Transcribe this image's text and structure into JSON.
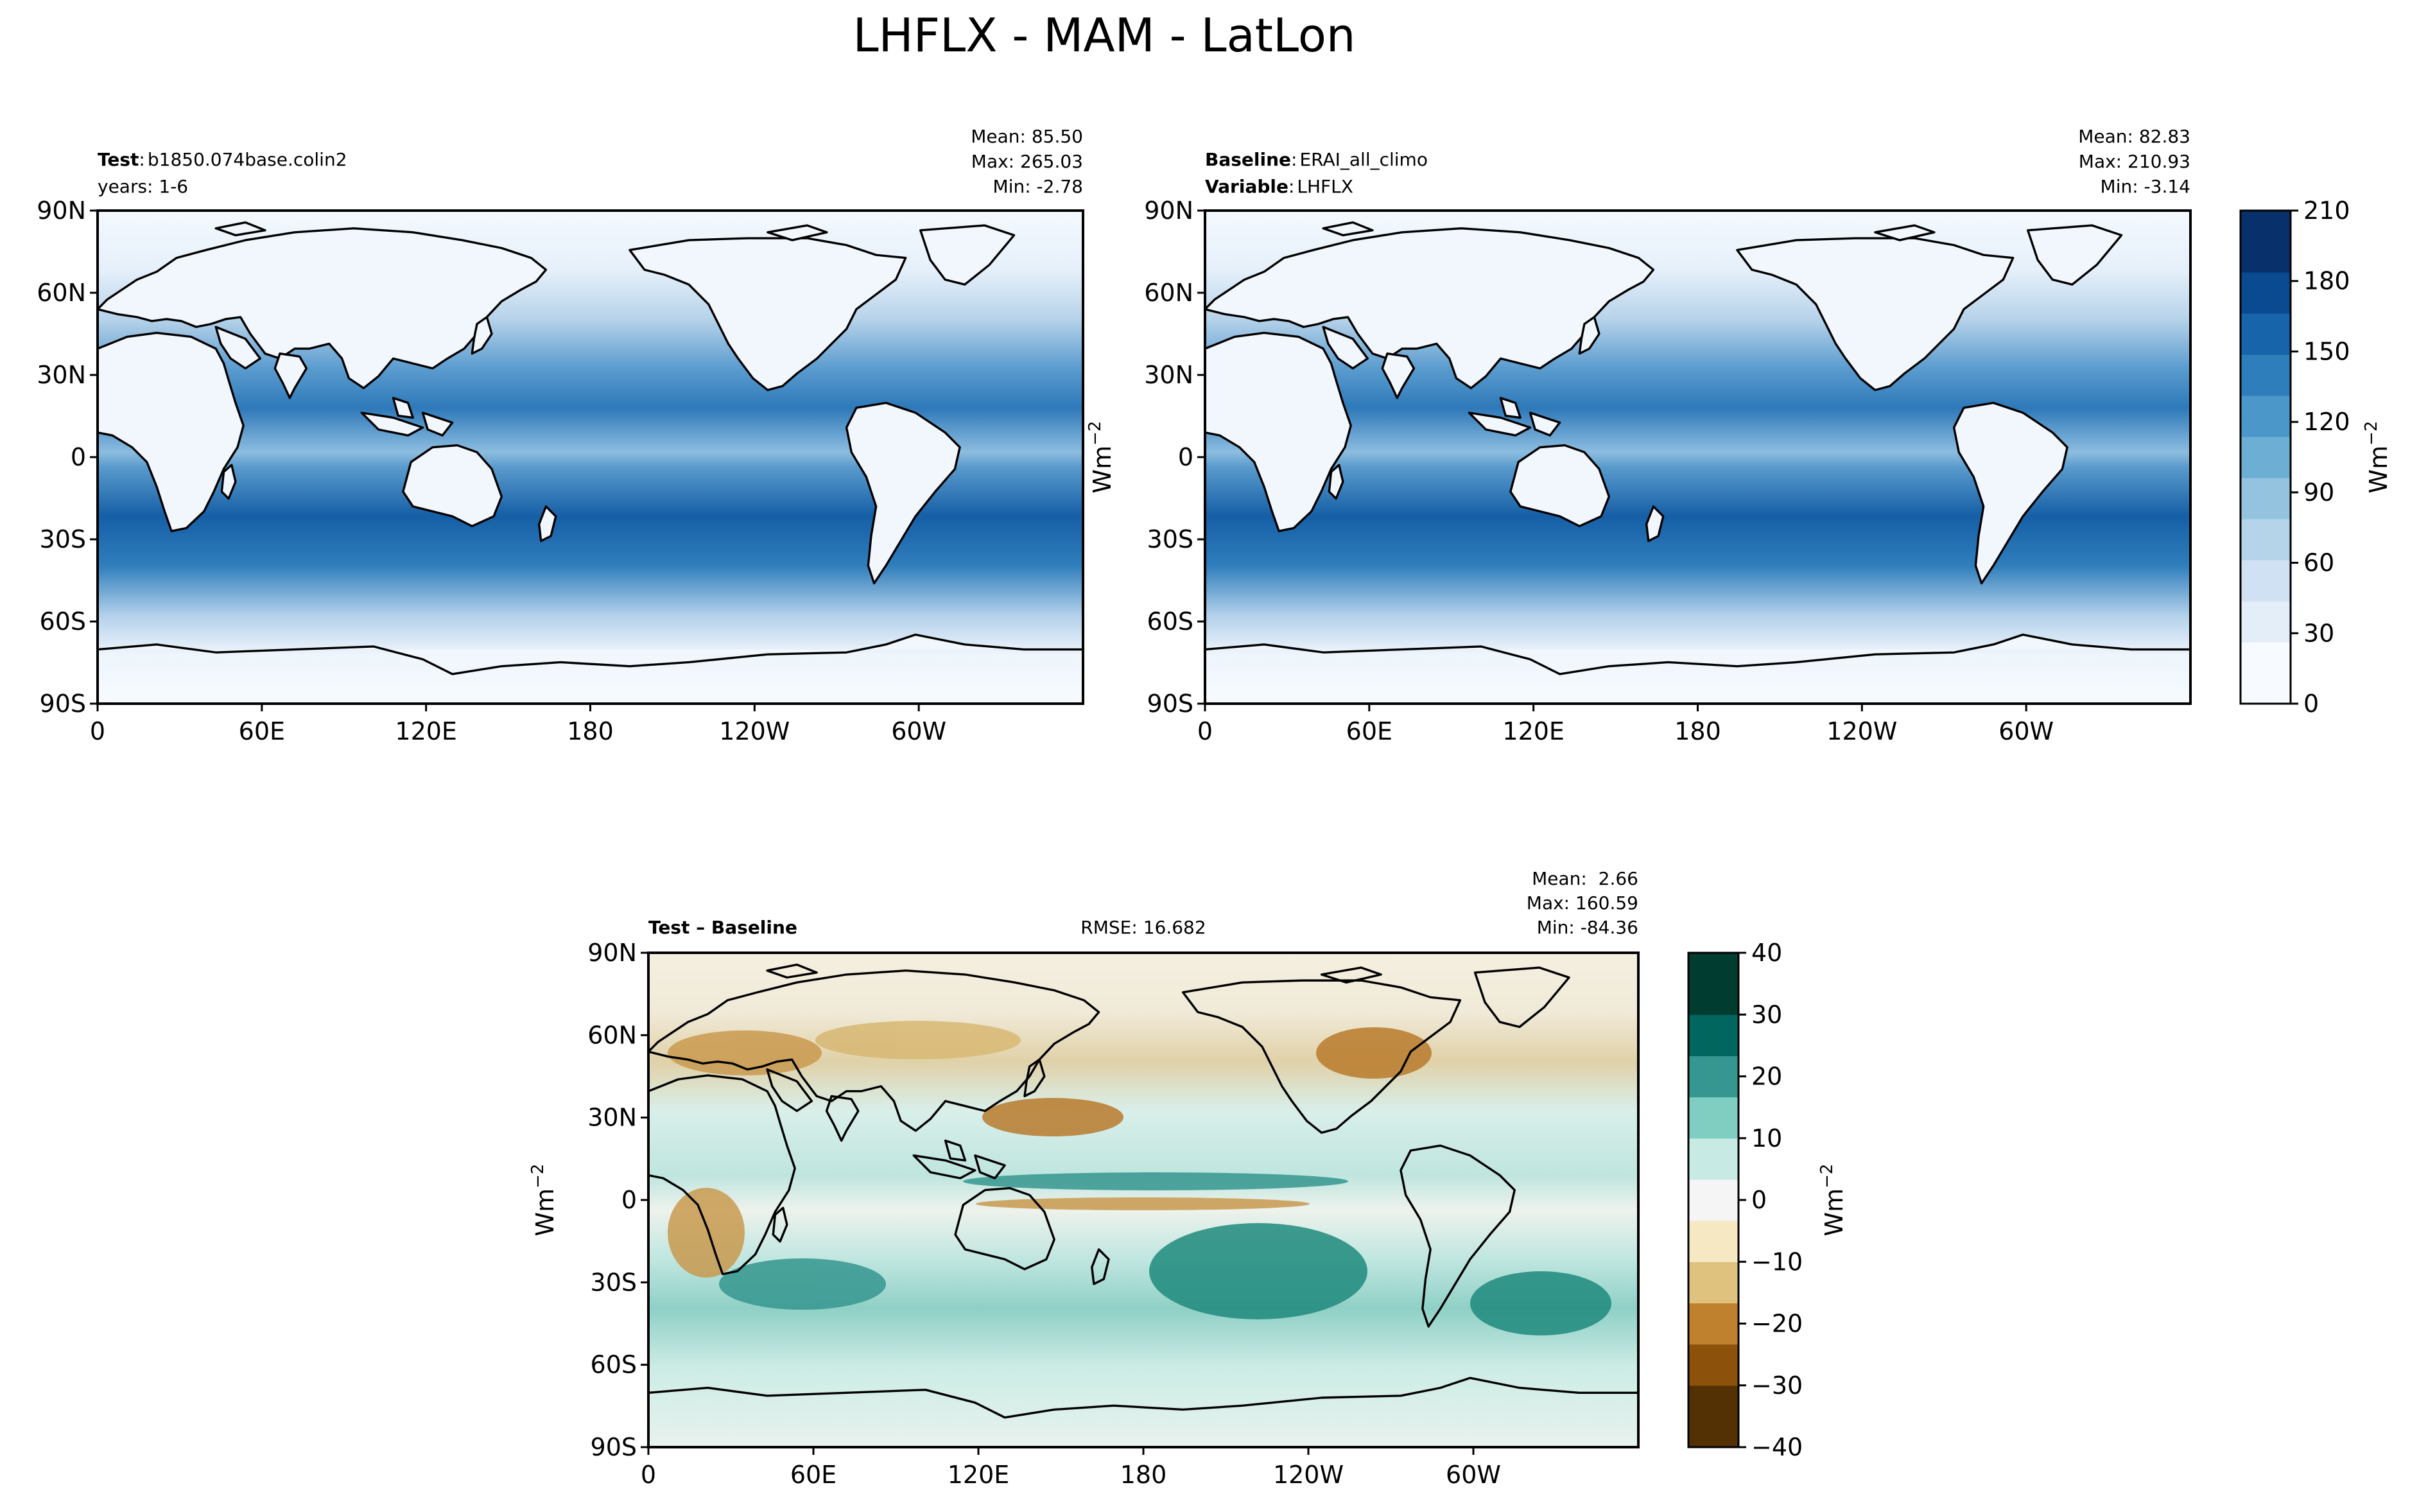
{
  "figure": {
    "title": "LHFLX - MAM - LatLon"
  },
  "panels": {
    "test": {
      "label_bold": "Test",
      "label_sep": ":",
      "label_value": "b1850.074base.colin2",
      "line2": "years: 1-6",
      "mean": "Mean: 85.50",
      "max": "Max: 265.03",
      "min": "Min: -2.78"
    },
    "baseline": {
      "label_bold": "Baseline",
      "label_sep": ":",
      "label_value": "ERAI_all_climo",
      "line2_bold": "Variable",
      "line2_value": "LHFLX",
      "mean": "Mean: 82.83",
      "max": "Max: 210.93",
      "min": "Min: -3.14"
    },
    "diff": {
      "label_bold": "Test – Baseline",
      "rmse": "RMSE: 16.682",
      "mean": "Mean:  2.66",
      "max": "Max: 160.59",
      "min": "Min: -84.36"
    }
  },
  "units_label": "Wm",
  "units_exp": "−2",
  "chart_data": [
    {
      "type": "heatmap",
      "name": "Test",
      "lat_ticks": [
        "90N",
        "60N",
        "30N",
        "0",
        "30S",
        "60S",
        "90S"
      ],
      "lon_ticks": [
        "0",
        "60E",
        "120E",
        "180",
        "120W",
        "60W"
      ],
      "mean": 85.5,
      "max": 265.03,
      "min": -2.78
    },
    {
      "type": "heatmap",
      "name": "Baseline",
      "lat_ticks": [
        "90N",
        "60N",
        "30N",
        "0",
        "30S",
        "60S",
        "90S"
      ],
      "lon_ticks": [
        "0",
        "60E",
        "120E",
        "180",
        "120W",
        "60W"
      ],
      "mean": 82.83,
      "max": 210.93,
      "min": -3.14,
      "colorbar": {
        "range": [
          0,
          210
        ],
        "ticks": [
          "210",
          "180",
          "150",
          "120",
          "90",
          "60",
          "30",
          "0"
        ],
        "colors": [
          "#f7fbff",
          "#e3eef9",
          "#cfe1f2",
          "#b5d4e9",
          "#93c3df",
          "#6daed5",
          "#4b97c9",
          "#2f7ebc",
          "#1864aa",
          "#0a4a90",
          "#08306b"
        ]
      }
    },
    {
      "type": "heatmap",
      "name": "Test – Baseline",
      "lat_ticks": [
        "90N",
        "60N",
        "30N",
        "0",
        "30S",
        "60S",
        "90S"
      ],
      "lon_ticks": [
        "0",
        "60E",
        "120E",
        "180",
        "120W",
        "60W"
      ],
      "rmse": 16.682,
      "mean": 2.66,
      "max": 160.59,
      "min": -84.36,
      "colorbar": {
        "range": [
          -40,
          40
        ],
        "ticks": [
          "40",
          "30",
          "20",
          "10",
          "0",
          "−10",
          "−20",
          "−30",
          "−40"
        ],
        "colors": [
          "#003c30",
          "#01665e",
          "#35978f",
          "#80cdc1",
          "#c7eae5",
          "#f5f5f5",
          "#f6e8c3",
          "#dfc27d",
          "#bf812d",
          "#8c510a",
          "#543005"
        ]
      }
    }
  ]
}
